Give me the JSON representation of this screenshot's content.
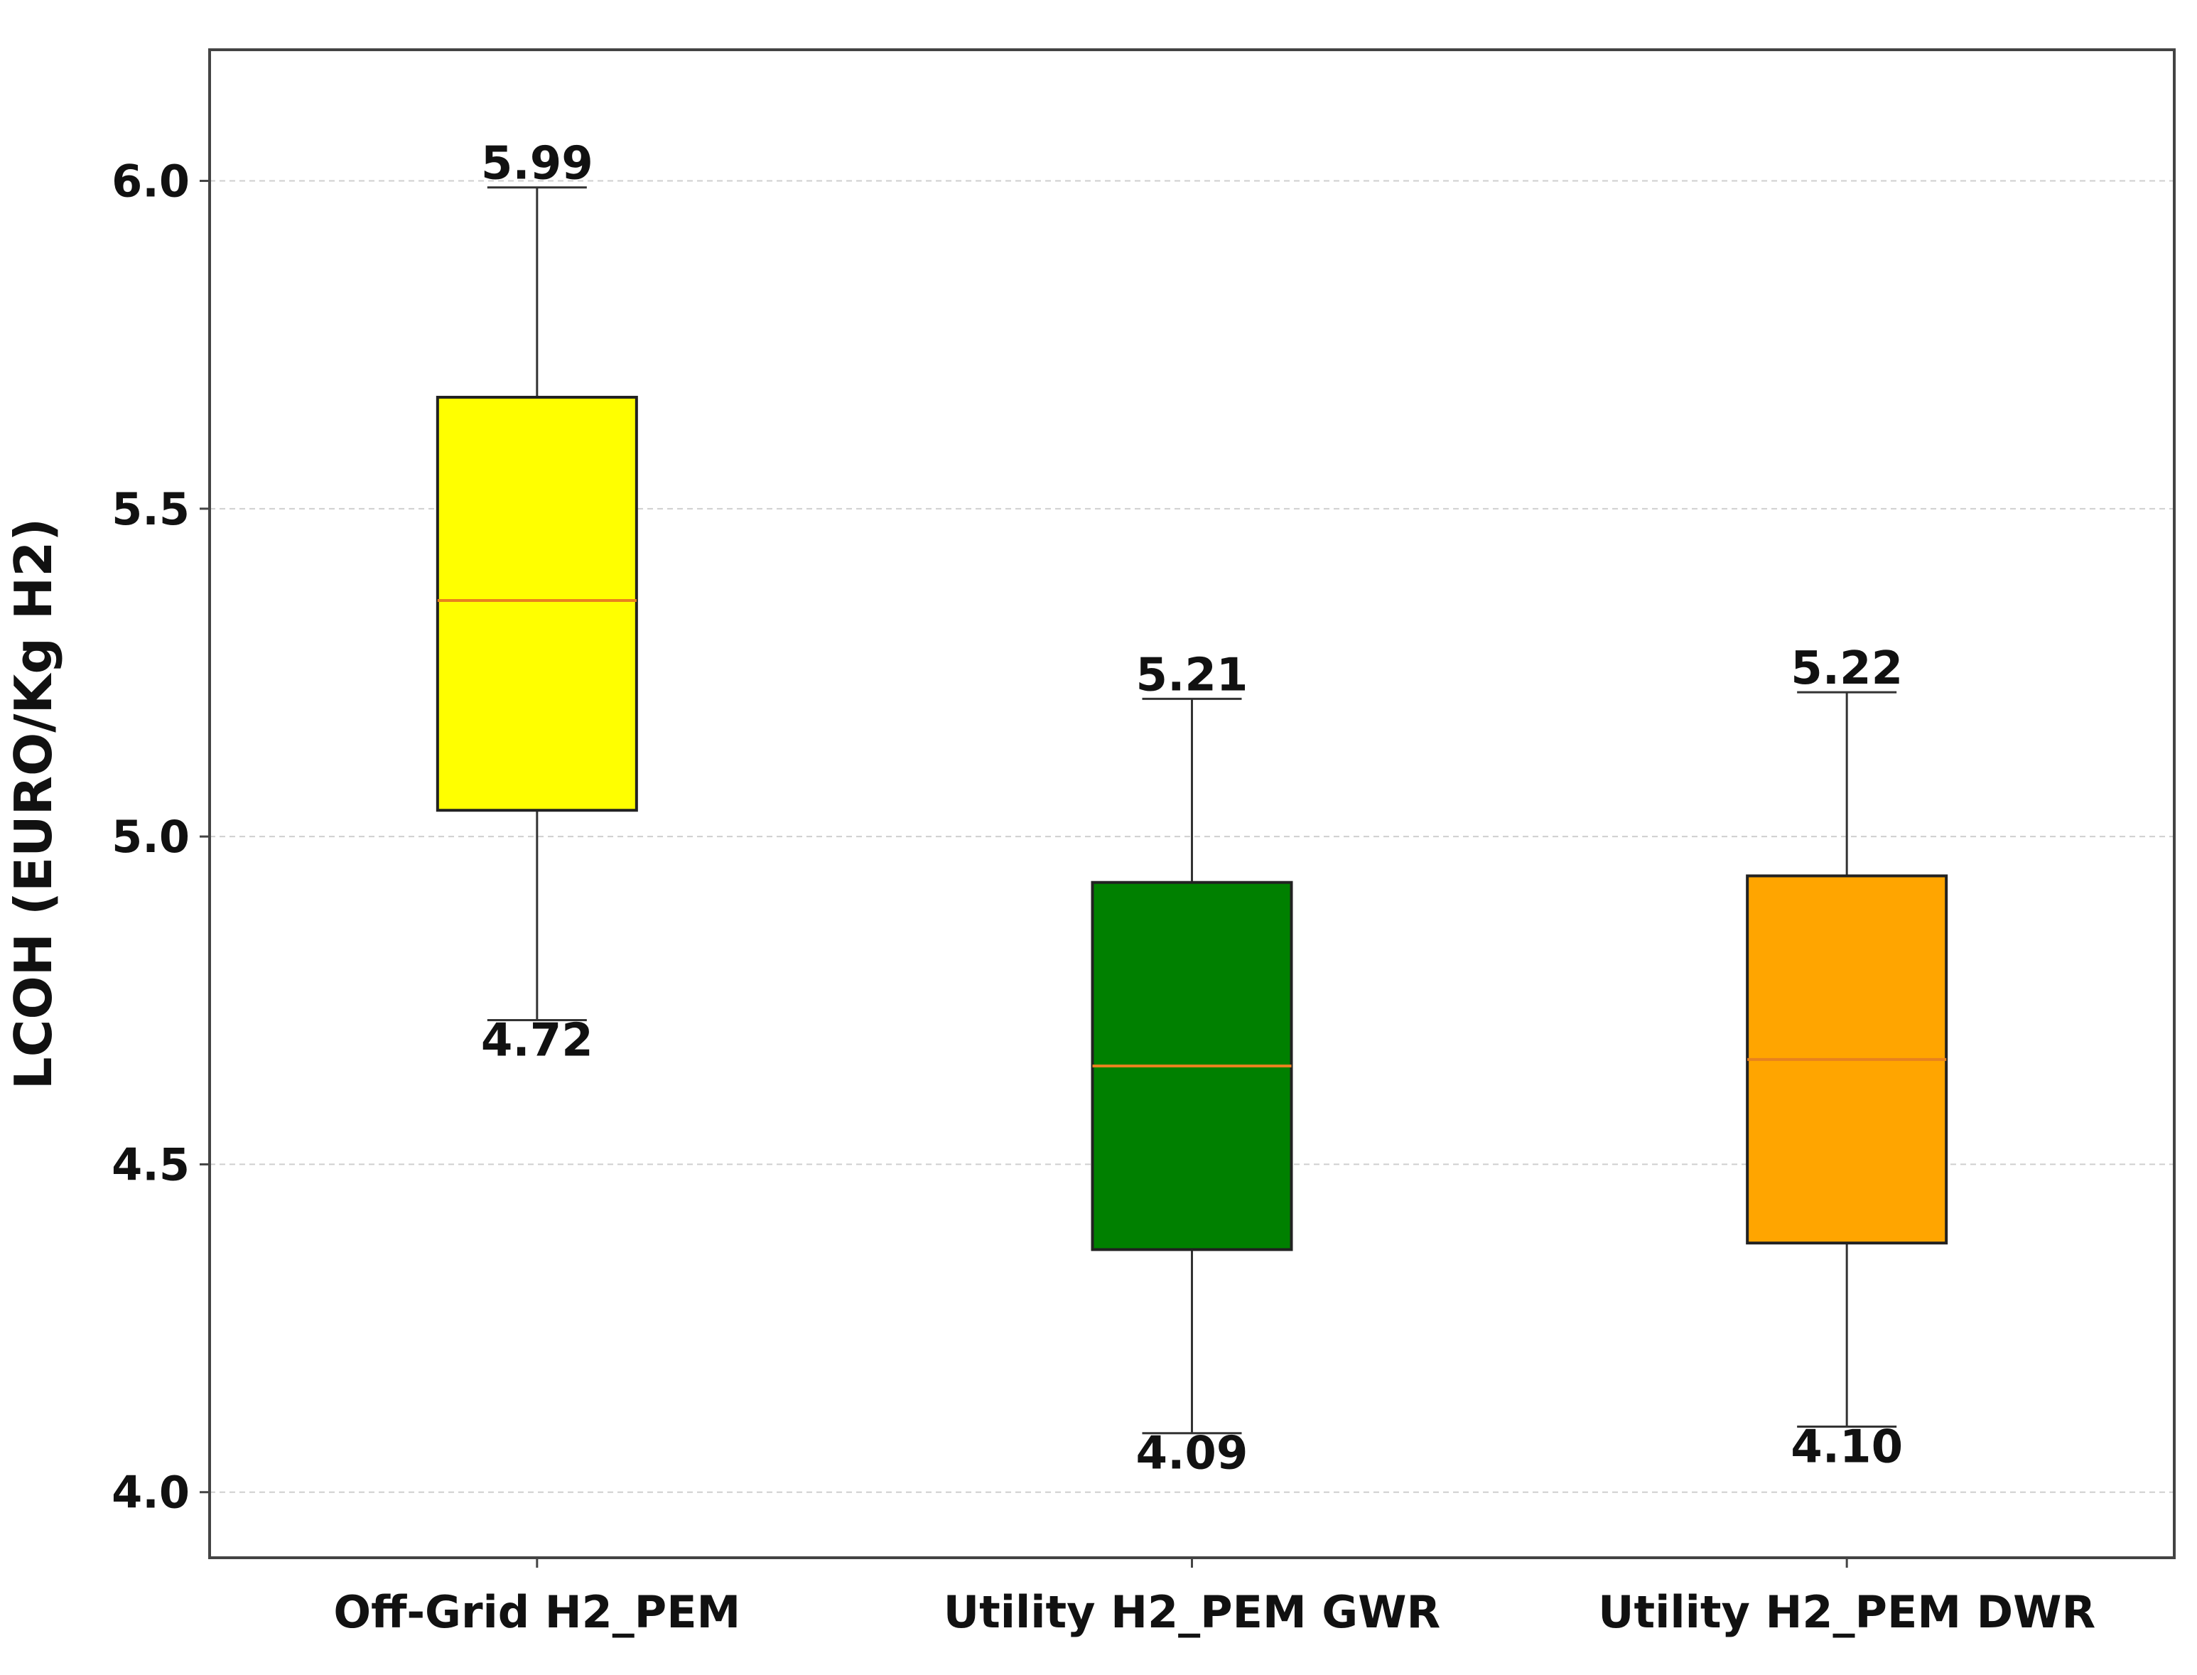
{
  "chart_data": {
    "type": "box",
    "ylabel": "LCOH (EURO/Kg H2)",
    "ylim": [
      3.9,
      6.2
    ],
    "yticks": [
      4.0,
      4.5,
      5.0,
      5.5,
      6.0
    ],
    "ytick_labels": [
      "4.0",
      "4.5",
      "5.0",
      "5.5",
      "6.0"
    ],
    "grid": "y-dashed",
    "categories": [
      "Off-Grid H2_PEM",
      "Utility H2_PEM GWR",
      "Utility H2_PEM DWR"
    ],
    "boxes": [
      {
        "name": "Off-Grid H2_PEM",
        "whisker_low": 4.72,
        "q1": 5.04,
        "median": 5.36,
        "q3": 5.67,
        "whisker_high": 5.99,
        "low_label": "4.72",
        "high_label": "5.99",
        "color": "#ffff00"
      },
      {
        "name": "Utility H2_PEM GWR",
        "whisker_low": 4.09,
        "q1": 4.37,
        "median": 4.65,
        "q3": 4.93,
        "whisker_high": 5.21,
        "low_label": "4.09",
        "high_label": "5.21",
        "color": "#008000"
      },
      {
        "name": "Utility H2_PEM DWR",
        "whisker_low": 4.1,
        "q1": 4.38,
        "median": 4.66,
        "q3": 4.94,
        "whisker_high": 5.22,
        "low_label": "4.10",
        "high_label": "5.22",
        "color": "#ffa500"
      }
    ],
    "median_color": "#e8821e"
  }
}
